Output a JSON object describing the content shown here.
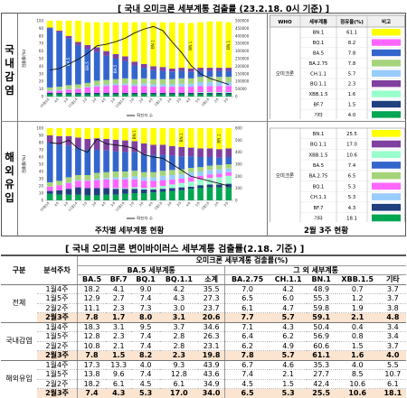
{
  "top_title": "[ 국내 오미크론 세부계통 검출률 (23.2.18. 0시 기준) ]",
  "section_labels": {
    "domestic": "국내감염",
    "overseas": "해외유입"
  },
  "footer_left": "주차별 세부계통 현황",
  "footer_right": "2월 3주 현황",
  "table_title": "[ 국내 오미크론 변이바이러스 세부계통 검출률(2.18. 기준) ]",
  "chart_data": [
    {
      "type": "bar",
      "stacked": true,
      "name": "domestic-weekly",
      "categories": [
        "10월3주",
        "4주",
        "5주",
        "11월1주",
        "2주",
        "3주",
        "4주",
        "5주",
        "12월1주",
        "2주",
        "3주",
        "4주",
        "1월1주",
        "2주",
        "3주",
        "4주",
        "5주",
        "2월1주",
        "2주",
        "3주"
      ],
      "ylabel": "검출률(%)",
      "ylim": [
        0,
        100
      ],
      "y2lim": [
        0,
        500000
      ],
      "y2ticks": [
        "500000",
        "450000",
        "400000",
        "350000",
        "300000",
        "250000",
        "200000",
        "150000",
        "100000",
        "50000",
        "0"
      ],
      "legend": "확진자 수",
      "segment_order": [
        "기타",
        "BF.7",
        "XBB.1.5",
        "BQ.1",
        "CH.1.1",
        "BA.2.75",
        "BA.5",
        "BQ.1.1",
        "BN.1"
      ],
      "series": [
        {
          "name": "기타",
          "values": [
            3,
            3,
            3,
            3,
            3,
            3,
            3,
            3,
            3,
            3,
            3,
            3,
            3,
            3,
            3,
            3,
            3,
            3,
            3,
            3
          ]
        },
        {
          "name": "BF.7",
          "values": [
            2,
            2,
            2,
            2,
            2,
            2,
            2,
            2,
            2,
            2,
            2,
            2,
            2,
            2,
            2,
            2,
            2,
            2,
            2,
            2
          ]
        },
        {
          "name": "XBB.1.5",
          "values": [
            0,
            0,
            0,
            0,
            0,
            0,
            0,
            0,
            0,
            0,
            0,
            0,
            0,
            0,
            0,
            0,
            1,
            1,
            1,
            1
          ]
        },
        {
          "name": "BQ.1",
          "values": [
            2,
            3,
            4,
            5,
            7,
            8,
            9,
            10,
            10,
            9,
            9,
            8,
            8,
            8,
            8,
            8,
            8,
            8,
            8,
            8
          ]
        },
        {
          "name": "CH.1.1",
          "values": [
            1,
            1,
            1,
            1,
            1,
            2,
            2,
            2,
            2,
            2,
            3,
            3,
            3,
            3,
            4,
            4,
            5,
            5,
            5,
            5
          ]
        },
        {
          "name": "BA.2.75",
          "values": [
            4,
            4,
            5,
            5,
            5,
            6,
            6,
            6,
            7,
            7,
            7,
            7,
            7,
            7,
            7,
            7,
            7,
            7,
            7,
            7
          ]
        },
        {
          "name": "BA.5",
          "values": [
            78,
            72,
            62,
            52,
            45,
            38,
            32,
            27,
            23,
            18,
            14,
            12,
            11,
            10,
            10,
            9,
            8,
            8,
            8,
            8
          ]
        },
        {
          "name": "BQ.1.1",
          "values": [
            1,
            2,
            3,
            4,
            5,
            6,
            6,
            6,
            6,
            5,
            5,
            5,
            5,
            4,
            4,
            4,
            4,
            4,
            4,
            4
          ]
        },
        {
          "name": "BN.1",
          "values": [
            9,
            13,
            20,
            28,
            30,
            33,
            38,
            42,
            45,
            52,
            55,
            58,
            59,
            61,
            59,
            60,
            60,
            61,
            61,
            60
          ]
        }
      ],
      "line": {
        "name": "확진자 수",
        "values": [
          175000,
          185000,
          215000,
          245000,
          285000,
          335000,
          345000,
          362000,
          385000,
          420000,
          445000,
          462000,
          435000,
          360000,
          290000,
          205000,
          150000,
          120000,
          100000,
          80000
        ]
      },
      "bar_labels": [
        {
          "category_index": 2,
          "series": "BA.5",
          "text": "BA.5"
        },
        {
          "category_index": 4,
          "series": "BA.5",
          "text": "BA.5"
        },
        {
          "category_index": 7,
          "series": "BA.5",
          "text": "BA.5"
        },
        {
          "category_index": 11,
          "series": "BN.1",
          "text": "BN.1"
        },
        {
          "category_index": 15,
          "series": "BN.1",
          "text": "BN.1"
        },
        {
          "category_index": 19,
          "series": "BN.1",
          "text": "BN.1"
        }
      ]
    },
    {
      "type": "bar",
      "stacked": true,
      "name": "overseas-weekly",
      "categories": [
        "10월3주",
        "4주",
        "5주",
        "11월1주",
        "2주",
        "3주",
        "4주",
        "5주",
        "12월1주",
        "2주",
        "3주",
        "4주",
        "1월1주",
        "2주",
        "3주",
        "4주",
        "5주",
        "2월1주",
        "2주",
        "3주"
      ],
      "ylabel": "검출률(%)",
      "ylim": [
        0,
        100
      ],
      "y2lim": [
        0,
        600
      ],
      "y2ticks": [
        "600",
        "500",
        "400",
        "300",
        "200",
        "100",
        "0"
      ],
      "legend": "확진자 수",
      "segment_order": [
        "기타",
        "BF.7",
        "XBB.1.5",
        "BQ.1",
        "CH.1.1",
        "BA.2.75",
        "BA.5",
        "BQ.1.1",
        "BN.1"
      ],
      "series": [
        {
          "name": "기타",
          "values": [
            9,
            8,
            8,
            8,
            7,
            7,
            8,
            8,
            9,
            10,
            10,
            11,
            12,
            13,
            14,
            16,
            17,
            18,
            18,
            18
          ]
        },
        {
          "name": "BF.7",
          "values": [
            4,
            6,
            8,
            10,
            10,
            10,
            9,
            8,
            7,
            6,
            5,
            4,
            4,
            4,
            4,
            3,
            4,
            4,
            4,
            5
          ]
        },
        {
          "name": "XBB.1.5",
          "values": [
            0,
            0,
            0,
            0,
            0,
            0,
            0,
            1,
            1,
            2,
            2,
            3,
            4,
            5,
            6,
            7,
            8,
            9,
            10,
            11
          ]
        },
        {
          "name": "BQ.1",
          "values": [
            6,
            7,
            8,
            9,
            10,
            11,
            12,
            12,
            12,
            11,
            10,
            9,
            8,
            7,
            6,
            6,
            5,
            5,
            5,
            5
          ]
        },
        {
          "name": "CH.1.1",
          "values": [
            0,
            0,
            1,
            1,
            1,
            2,
            2,
            3,
            3,
            4,
            5,
            5,
            6,
            6,
            6,
            7,
            6,
            6,
            6,
            5
          ]
        },
        {
          "name": "BA.2.75",
          "values": [
            6,
            6,
            7,
            7,
            7,
            8,
            8,
            8,
            8,
            8,
            7,
            7,
            7,
            7,
            7,
            6,
            6,
            6,
            6,
            6
          ]
        },
        {
          "name": "BA.5",
          "values": [
            55,
            50,
            44,
            38,
            35,
            32,
            30,
            28,
            27,
            26,
            25,
            24,
            22,
            20,
            18,
            16,
            14,
            12,
            10,
            10
          ]
        },
        {
          "name": "BQ.1.1",
          "values": [
            10,
            12,
            13,
            14,
            15,
            16,
            16,
            16,
            16,
            15,
            15,
            14,
            14,
            13,
            13,
            12,
            12,
            12,
            12,
            12
          ]
        },
        {
          "name": "BN.1",
          "values": [
            10,
            11,
            11,
            13,
            15,
            14,
            15,
            16,
            17,
            18,
            21,
            23,
            23,
            25,
            26,
            27,
            28,
            28,
            29,
            28
          ]
        }
      ],
      "line": {
        "name": "확진자 수",
        "values": [
          480,
          470,
          500,
          430,
          400,
          510,
          470,
          460,
          450,
          430,
          380,
          360,
          350,
          300,
          250,
          200,
          180,
          160,
          140,
          120
        ]
      },
      "bar_labels": [
        {
          "category_index": 9,
          "series": "BN.1",
          "text": "BN.1"
        },
        {
          "category_index": 14,
          "series": "BN.1",
          "text": "BN.1"
        },
        {
          "category_index": 18,
          "series": "BN.1",
          "text": "BN.1"
        }
      ]
    },
    {
      "type": "table",
      "name": "domestic-current",
      "columns": [
        "WHO",
        "세부계통",
        "점유율(%)",
        "비고"
      ],
      "group_label": "오미크론",
      "rows": [
        {
          "name": "BN.1",
          "value": "61.1",
          "color": "#ffff00"
        },
        {
          "name": "BQ.1",
          "value": "8.2",
          "color": "#ff66ff"
        },
        {
          "name": "BA.5",
          "value": "7.8",
          "color": "#3366cc"
        },
        {
          "name": "BA.2.75",
          "value": "7.8",
          "color": "#a5d47a"
        },
        {
          "name": "CH.1.1",
          "value": "5.7",
          "color": "#99ccff"
        },
        {
          "name": "BQ.1.1",
          "value": "2.3",
          "color": "#8040a0"
        },
        {
          "name": "XBB.1.5",
          "value": "1.6",
          "color": "#99ffcc"
        },
        {
          "name": "BF.7",
          "value": "1.5",
          "color": "#1f3f7f"
        },
        {
          "name": "기타",
          "value": "4.0",
          "color": "#00a651"
        }
      ]
    },
    {
      "type": "table",
      "name": "overseas-current",
      "columns": [
        "",
        "",
        "",
        ""
      ],
      "group_label": "오미크론",
      "rows": [
        {
          "name": "BN.1",
          "value": "25.5",
          "color": "#ffff00"
        },
        {
          "name": "BQ.1.1",
          "value": "17.0",
          "color": "#8040a0"
        },
        {
          "name": "XBB.1.5",
          "value": "10.6",
          "color": "#99ffcc"
        },
        {
          "name": "BA.5",
          "value": "7.4",
          "color": "#3366cc"
        },
        {
          "name": "BA.2.75",
          "value": "6.5",
          "color": "#a5d47a"
        },
        {
          "name": "BQ.1",
          "value": "5.3",
          "color": "#ff66ff"
        },
        {
          "name": "CH.1.1",
          "value": "5.3",
          "color": "#99ccff"
        },
        {
          "name": "BF.7",
          "value": "4.3",
          "color": "#1f3f7f"
        },
        {
          "name": "기타",
          "value": "18.1",
          "color": "#00a651"
        }
      ]
    },
    {
      "type": "table",
      "name": "main-table",
      "header": {
        "col1": "구분",
        "col2": "분석주차",
        "top": "오미크론 세부계통 검출률(%)",
        "ba5_group": "BA.5 세부계통",
        "other_group": "그 외 세부계통",
        "subcols": [
          "BA.5",
          "BF.7",
          "BQ.1",
          "BQ.1.1",
          "소계",
          "BA.2.75",
          "CH.1.1",
          "BN.1",
          "XBB.1.5",
          "기타"
        ]
      },
      "groups": [
        {
          "label": "전체",
          "rows": [
            {
              "week": "1월4주",
              "values": [
                "18.2",
                "4.1",
                "9.0",
                "4.2",
                "35.5",
                "7.0",
                "4.2",
                "48.9",
                "0.7",
                "3.7"
              ],
              "highlight": false
            },
            {
              "week": "1월5주",
              "values": [
                "12.9",
                "2.7",
                "7.4",
                "4.3",
                "27.3",
                "6.5",
                "6.0",
                "55.3",
                "1.2",
                "3.7"
              ],
              "highlight": false
            },
            {
              "week": "2월2주",
              "values": [
                "11.1",
                "2.3",
                "7.3",
                "3.0",
                "23.7",
                "6.1",
                "4.7",
                "59.8",
                "1.9",
                "3.8"
              ],
              "highlight": false
            },
            {
              "week": "2월3주",
              "values": [
                "7.8",
                "1.7",
                "8.0",
                "3.1",
                "20.6",
                "7.7",
                "5.7",
                "59.1",
                "2.1",
                "4.8"
              ],
              "highlight": true
            }
          ]
        },
        {
          "label": "국내감염",
          "rows": [
            {
              "week": "1월4주",
              "values": [
                "18.3",
                "3.1",
                "9.5",
                "3.7",
                "34.6",
                "7.1",
                "4.3",
                "50.4",
                "0.4",
                "3.4"
              ],
              "highlight": false
            },
            {
              "week": "1월5주",
              "values": [
                "12.8",
                "2.3",
                "7.4",
                "2.8",
                "26.3",
                "6.4",
                "6.2",
                "56.9",
                "0.8",
                "3.4"
              ],
              "highlight": false
            },
            {
              "week": "2월2주",
              "values": [
                "10.8",
                "2.1",
                "7.4",
                "2.8",
                "23.1",
                "6.2",
                "4.9",
                "60.6",
                "1.5",
                "3.7"
              ],
              "highlight": false
            },
            {
              "week": "2월3주",
              "values": [
                "7.8",
                "1.5",
                "8.2",
                "2.3",
                "19.8",
                "7.8",
                "5.7",
                "61.1",
                "1.6",
                "4.0"
              ],
              "highlight": true
            }
          ]
        },
        {
          "label": "해외유입",
          "rows": [
            {
              "week": "1월4주",
              "values": [
                "17.3",
                "13.3",
                "4.0",
                "9.3",
                "43.9",
                "6.7",
                "4.6",
                "35.3",
                "4.0",
                "5.5"
              ],
              "highlight": false
            },
            {
              "week": "1월5주",
              "values": [
                "13.8",
                "9.6",
                "7.4",
                "12.8",
                "43.6",
                "7.4",
                "2.1",
                "27.7",
                "8.5",
                "10.7"
              ],
              "highlight": false
            },
            {
              "week": "2월2주",
              "values": [
                "18.2",
                "6.1",
                "4.5",
                "6.1",
                "34.9",
                "4.5",
                "1.5",
                "42.4",
                "10.6",
                "6.1"
              ],
              "highlight": false
            },
            {
              "week": "2월3주",
              "values": [
                "7.4",
                "4.3",
                "5.3",
                "17.0",
                "34.0",
                "6.5",
                "5.3",
                "25.5",
                "10.6",
                "18.1"
              ],
              "highlight": true
            }
          ]
        }
      ]
    }
  ]
}
